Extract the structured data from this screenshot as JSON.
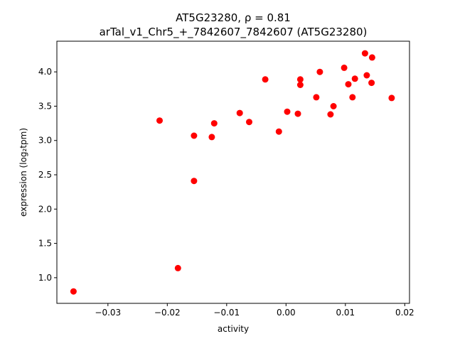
{
  "chart_data": {
    "type": "scatter",
    "title_line1": "AT5G23280, ρ = 0.81",
    "title_line2": "arTal_v1_Chr5_+_7842607_7842607 (AT5G23280)",
    "xlabel": "activity",
    "ylabel": "expression (log₂tpm)",
    "xlim": [
      -0.0386,
      0.0208
    ],
    "ylim": [
      0.626,
      4.447
    ],
    "xticks": [
      -0.03,
      -0.02,
      -0.01,
      0.0,
      0.01,
      0.02
    ],
    "xtick_labels": [
      "−0.03",
      "−0.02",
      "−0.01",
      "0.00",
      "0.01",
      "0.02"
    ],
    "yticks": [
      1.0,
      1.5,
      2.0,
      2.5,
      3.0,
      3.5,
      4.0
    ],
    "ytick_labels": [
      "1.0",
      "1.5",
      "2.0",
      "2.5",
      "3.0",
      "3.5",
      "4.0"
    ],
    "grid": false,
    "marker_color": "#ff0000",
    "points": [
      {
        "x": -0.0358,
        "y": 0.8
      },
      {
        "x": -0.0182,
        "y": 1.14
      },
      {
        "x": -0.0155,
        "y": 2.41
      },
      {
        "x": -0.0213,
        "y": 3.29
      },
      {
        "x": -0.0155,
        "y": 3.07
      },
      {
        "x": -0.0125,
        "y": 3.05
      },
      {
        "x": -0.0121,
        "y": 3.25
      },
      {
        "x": -0.0078,
        "y": 3.4
      },
      {
        "x": -0.0062,
        "y": 3.27
      },
      {
        "x": -0.0035,
        "y": 3.89
      },
      {
        "x": -0.0012,
        "y": 3.13
      },
      {
        "x": 0.0002,
        "y": 3.42
      },
      {
        "x": 0.002,
        "y": 3.39
      },
      {
        "x": 0.0024,
        "y": 3.81
      },
      {
        "x": 0.0024,
        "y": 3.89
      },
      {
        "x": 0.0051,
        "y": 3.63
      },
      {
        "x": 0.0057,
        "y": 4.0
      },
      {
        "x": 0.0075,
        "y": 3.38
      },
      {
        "x": 0.008,
        "y": 3.5
      },
      {
        "x": 0.0098,
        "y": 4.06
      },
      {
        "x": 0.0105,
        "y": 3.82
      },
      {
        "x": 0.0112,
        "y": 3.63
      },
      {
        "x": 0.0116,
        "y": 3.9
      },
      {
        "x": 0.0133,
        "y": 4.27
      },
      {
        "x": 0.0136,
        "y": 3.95
      },
      {
        "x": 0.0144,
        "y": 3.84
      },
      {
        "x": 0.0145,
        "y": 4.21
      },
      {
        "x": 0.0178,
        "y": 3.62
      }
    ]
  }
}
